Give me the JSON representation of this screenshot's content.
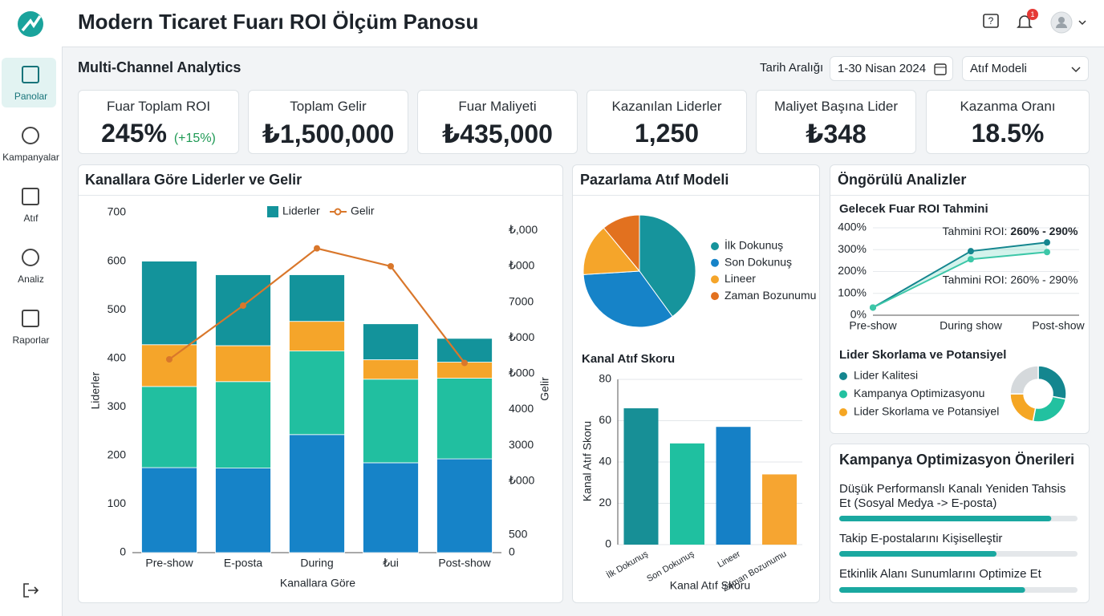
{
  "sidebar": {
    "items": [
      "Panolar",
      "Kampanyalar",
      "Atıf",
      "Analiz",
      "Raporlar"
    ],
    "active": 0
  },
  "header": {
    "title": "Modern Ticaret Fuarı ROI Ölçüm Panosu",
    "notifications": 1
  },
  "toolbar": {
    "title": "Multi-Channel Analytics",
    "date_label": "Tarih Aralığı",
    "date_value": "1-30 Nisan 2024",
    "model": "Atıf Modeli"
  },
  "kpis": [
    {
      "label": "Fuar Toplam ROI",
      "value": "245%",
      "delta": "(+15%)"
    },
    {
      "label": "Toplam Gelir",
      "value": "₺1,500,000"
    },
    {
      "label": "Fuar Maliyeti",
      "value": "₺435,000"
    },
    {
      "label": "Kazanılan Liderler",
      "value": "1,250"
    },
    {
      "label": "Maliyet Başına Lider",
      "value": "₺348"
    },
    {
      "label": "Kazanma Oranı",
      "value": "18.5%"
    }
  ],
  "leads_chart": {
    "type": "bar",
    "stacked": true,
    "title": "Kanallara Göre Liderler ve Gelir",
    "categories": [
      "Pre-show",
      "E-posta",
      "During",
      "₺ui",
      "Post-show"
    ],
    "series": [
      {
        "color": "#1683c8",
        "values": [
          175,
          174,
          243,
          185,
          193
        ]
      },
      {
        "color": "#21bfa0",
        "values": [
          167,
          178,
          172,
          172,
          166
        ]
      },
      {
        "color": "#f5a52a",
        "values": [
          86,
          74,
          61,
          40,
          33
        ]
      },
      {
        "color": "#13939b",
        "values": [
          172,
          146,
          96,
          74,
          49
        ]
      }
    ],
    "bar_legend": {
      "name": "Liderler",
      "color": "#13939b"
    },
    "line": {
      "name": "Gelir",
      "color": "#d9772b",
      "axis": "y2",
      "values": [
        5400,
        6900,
        8500,
        8000,
        5300
      ]
    },
    "ylim": [
      0,
      700
    ],
    "yticks": [
      0,
      100,
      200,
      300,
      400,
      500,
      600,
      700
    ],
    "y2lim": [
      0,
      9500
    ],
    "y2ticks": [
      0,
      500,
      {
        "value": 2000,
        "label": "₺000"
      },
      3000,
      4000,
      {
        "value": 5000,
        "label": "₺000"
      },
      {
        "value": 6000,
        "label": "₺000"
      },
      7000,
      {
        "value": 8000,
        "label": "₺000"
      },
      {
        "value": 9000,
        "label": "₺,000"
      }
    ],
    "xlabel": "Kanallara Göre",
    "ylabel": "Liderler",
    "y2label": "Gelir"
  },
  "attribution": {
    "title": "Pazarlama Atıf Modeli",
    "pie": {
      "type": "pie",
      "categories": [
        "İlk Dokunuş",
        "Son Dokunuş",
        "Lineer",
        "Zaman Bozunumu"
      ],
      "values": [
        40,
        34,
        15,
        11
      ],
      "colors": [
        "#16949c",
        "#1683c8",
        "#f5a52a",
        "#e2711f"
      ]
    },
    "score_chart": {
      "type": "bar",
      "title": "Kanal Atıf Skoru",
      "categories": [
        "İlk Dokunuş",
        "Son Dokunuş",
        "Lineer",
        "Zaman Bozunumu"
      ],
      "values": [
        66,
        49,
        57,
        34
      ],
      "colors": [
        "#178f96",
        "#1fc0a0",
        "#1580c6",
        "#f6a531"
      ],
      "ylim": [
        0,
        80
      ],
      "yticks": [
        0,
        20,
        40,
        60,
        80
      ],
      "grid": true,
      "xlabel": "Kanal Atıf Skoru",
      "ylabel": "Kanal Atıf Skoru"
    }
  },
  "predictive": {
    "title": "Öngörülü Analizler",
    "forecast": {
      "type": "line",
      "title": "Gelecek Fuar ROI Tahmini",
      "categories": [
        "Pre-show",
        "During show",
        "Post-show"
      ],
      "series": [
        {
          "color": "#14868f",
          "values": [
            35,
            293,
            333
          ]
        },
        {
          "color": "#3cc7a8",
          "values": [
            35,
            256,
            289
          ]
        }
      ],
      "ylim": [
        0,
        400
      ],
      "yticks": [
        {
          "value": 0,
          "label": "0%"
        },
        {
          "value": 100,
          "label": "100%"
        },
        {
          "value": 200,
          "label": "200%"
        },
        {
          "value": 300,
          "label": "300%"
        },
        {
          "value": 400,
          "label": "400%"
        }
      ],
      "grid": true,
      "annotations": [
        {
          "prefix": "Tahmini ROI:",
          "highlight": "260% - 290%"
        },
        {
          "text": "Tahmini ROI: 260% - 290%"
        }
      ]
    },
    "lead_scoring": {
      "type": "pie",
      "title": "Lider Skorlama ve Potansiyel",
      "series": [
        {
          "name": "Lider Kalitesi",
          "color": "#14868f",
          "value": 28
        },
        {
          "name": "Kampanya Optimizasyonu",
          "color": "#22c1a0",
          "value": 25
        },
        {
          "name": "Lider Skorlama ve Potansiyel",
          "color": "#f5a623",
          "value": 22
        },
        {
          "color": "#d5d9dc",
          "value": 25
        }
      ]
    }
  },
  "recommendations": {
    "title": "Kampanya Optimizasyon Önerileri",
    "color": "#1aa8a0",
    "items": [
      {
        "text": "Düşük Performanslı Kanalı Yeniden Tahsis Et (Sosyal Medya -> E-posta)",
        "progress": 89
      },
      {
        "text": "Takip E-postalarını Kişiselleştir",
        "progress": 66
      },
      {
        "text": "Etkinlik Alanı Sunumlarını Optimize Et",
        "progress": 78
      }
    ]
  }
}
